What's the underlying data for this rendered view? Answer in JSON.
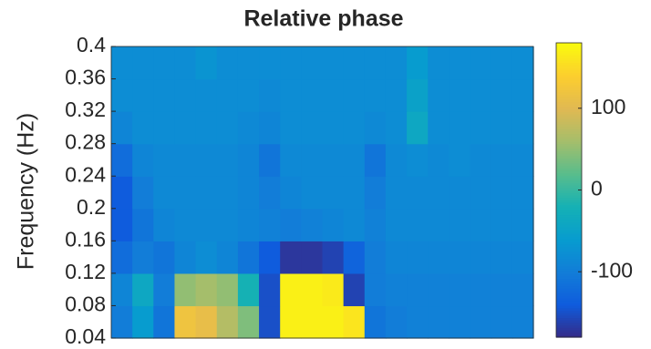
{
  "chart_data": {
    "type": "heatmap",
    "title": "Relative phase",
    "ylabel": "Frequency (Hz)",
    "colormap": "parula",
    "ylim": [
      0.04,
      0.4
    ],
    "yticks": [
      0.04,
      0.08,
      0.12,
      0.16,
      0.2,
      0.24,
      0.28,
      0.32,
      0.36,
      0.4
    ],
    "clim": [
      -180,
      180
    ],
    "cticks": [
      -100,
      0,
      100
    ],
    "z": [
      [
        -100,
        -60,
        -110,
        120,
        110,
        70,
        40,
        -150,
        170,
        170,
        170,
        160,
        -110,
        -100,
        -95,
        -95,
        -95,
        -95,
        -95,
        -95
      ],
      [
        -90,
        -40,
        -100,
        50,
        60,
        50,
        -20,
        -150,
        170,
        170,
        165,
        -160,
        -100,
        -95,
        -95,
        -95,
        -95,
        -95,
        -95,
        -95
      ],
      [
        -120,
        -100,
        -110,
        -90,
        -80,
        -90,
        -110,
        -140,
        -170,
        -170,
        -160,
        -130,
        -100,
        -90,
        -90,
        -90,
        -90,
        -90,
        -90,
        -90
      ],
      [
        -140,
        -110,
        -90,
        -85,
        -85,
        -85,
        -90,
        -95,
        -100,
        -95,
        -90,
        -85,
        -95,
        -85,
        -85,
        -85,
        -85,
        -85,
        -85,
        -85
      ],
      [
        -140,
        -100,
        -85,
        -85,
        -85,
        -85,
        -90,
        -100,
        -90,
        -85,
        -85,
        -85,
        -100,
        -85,
        -85,
        -85,
        -85,
        -85,
        -85,
        -85
      ],
      [
        -120,
        -90,
        -85,
        -85,
        -85,
        -85,
        -90,
        -110,
        -85,
        -85,
        -85,
        -85,
        -110,
        -85,
        -80,
        -85,
        -80,
        -85,
        -85,
        -85
      ],
      [
        -90,
        -80,
        -80,
        -80,
        -80,
        -80,
        -85,
        -90,
        -80,
        -80,
        -80,
        -80,
        -85,
        -80,
        -40,
        -80,
        -80,
        -80,
        -80,
        -80
      ],
      [
        -80,
        -80,
        -80,
        -80,
        -80,
        -80,
        -80,
        -85,
        -80,
        -80,
        -80,
        -80,
        -80,
        -80,
        -50,
        -80,
        -80,
        -80,
        -80,
        -80
      ],
      [
        -80,
        -80,
        -80,
        -80,
        -70,
        -80,
        -80,
        -80,
        -80,
        -80,
        -80,
        -80,
        -80,
        -80,
        -60,
        -80,
        -80,
        -80,
        -80,
        -80
      ]
    ]
  }
}
